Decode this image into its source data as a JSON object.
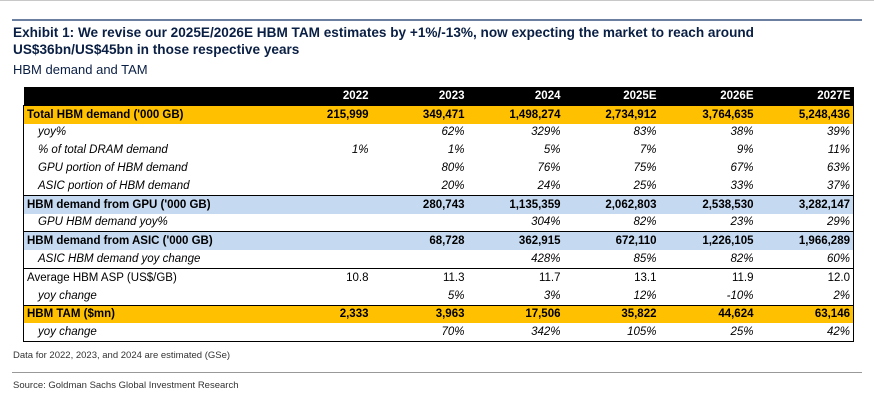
{
  "title": "Exhibit 1: We revise our 2025E/2026E HBM TAM estimates by +1%/-13%, now expecting the market to reach around US$36bn/US$45bn in those respective years",
  "subtitle": "HBM demand and TAM",
  "table": {
    "headers": [
      "",
      "2022",
      "2023",
      "2024",
      "2025E",
      "2026E",
      "2027E"
    ],
    "rows": [
      {
        "label": "Total HBM demand ('000 GB)",
        "values": [
          "215,999",
          "349,471",
          "1,498,274",
          "2,734,912",
          "3,764,635",
          "5,248,436"
        ]
      },
      {
        "label": "yoy%",
        "values": [
          "",
          "62%",
          "329%",
          "83%",
          "38%",
          "39%"
        ]
      },
      {
        "label": "% of total DRAM demand",
        "values": [
          "1%",
          "1%",
          "5%",
          "7%",
          "9%",
          "11%"
        ]
      },
      {
        "label": "GPU portion of HBM demand",
        "values": [
          "",
          "80%",
          "76%",
          "75%",
          "67%",
          "63%"
        ]
      },
      {
        "label": "ASIC portion of HBM demand",
        "values": [
          "",
          "20%",
          "24%",
          "25%",
          "33%",
          "37%"
        ]
      },
      {
        "label": "HBM demand from GPU ('000 GB)",
        "values": [
          "",
          "280,743",
          "1,135,359",
          "2,062,803",
          "2,538,530",
          "3,282,147"
        ]
      },
      {
        "label": "GPU HBM demand yoy%",
        "values": [
          "",
          "",
          "304%",
          "82%",
          "23%",
          "29%"
        ]
      },
      {
        "label": "HBM demand from ASIC ('000 GB)",
        "values": [
          "",
          "68,728",
          "362,915",
          "672,110",
          "1,226,105",
          "1,966,289"
        ]
      },
      {
        "label": "ASIC HBM demand yoy change",
        "values": [
          "",
          "",
          "428%",
          "85%",
          "82%",
          "60%"
        ]
      },
      {
        "label": "Average HBM ASP (US$/GB)",
        "values": [
          "10.8",
          "11.3",
          "11.7",
          "13.1",
          "11.9",
          "12.0"
        ]
      },
      {
        "label": "yoy change",
        "values": [
          "",
          "5%",
          "3%",
          "12%",
          "-10%",
          "2%"
        ]
      },
      {
        "label": "HBM TAM ($mn)",
        "values": [
          "2,333",
          "3,963",
          "17,506",
          "35,822",
          "44,624",
          "63,146"
        ]
      },
      {
        "label": "yoy change",
        "values": [
          "",
          "70%",
          "342%",
          "105%",
          "25%",
          "42%"
        ]
      }
    ]
  },
  "colors": {
    "header_bg": "#000000",
    "section_orange": "#ffc000",
    "section_blue": "#c5d9f1"
  },
  "note": "Data for 2022, 2023, and 2024 are estimated (GSe)",
  "source": "Source: Goldman Sachs Global Investment Research"
}
